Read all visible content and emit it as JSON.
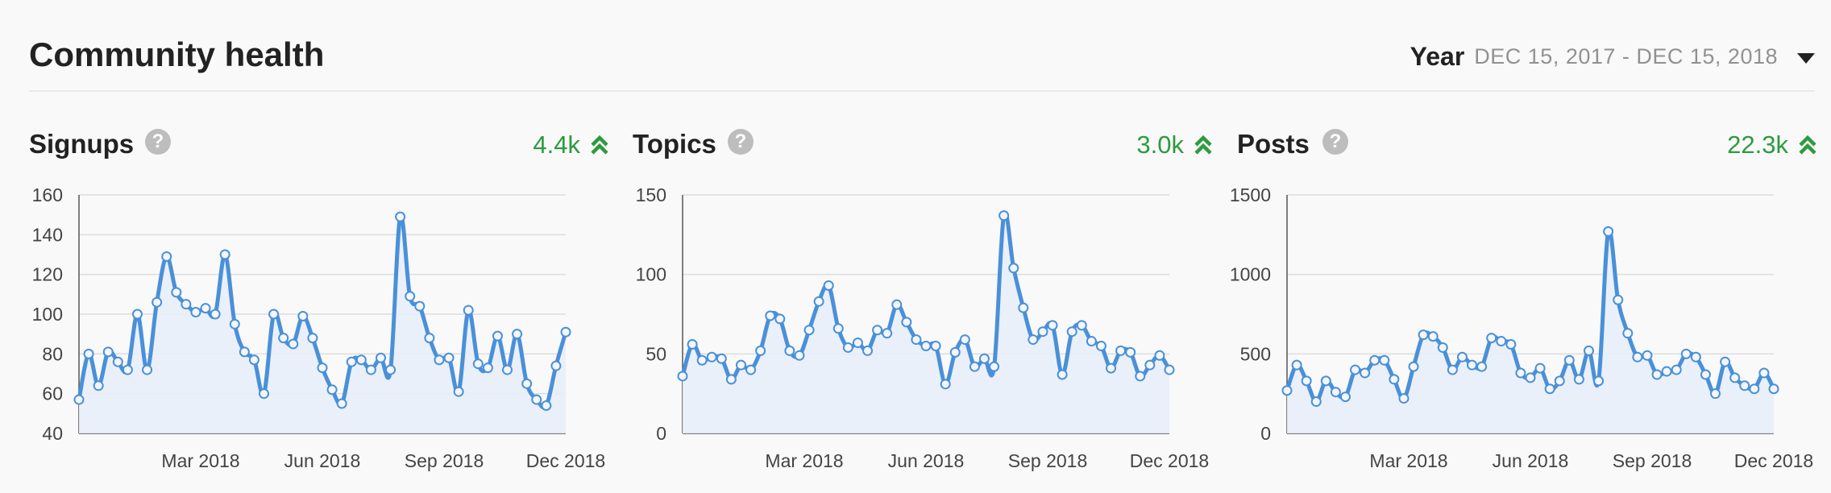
{
  "page": {
    "title": "Community health",
    "period_label": "Year",
    "period_range": "DEC 15, 2017 - DEC 15, 2018"
  },
  "colors": {
    "line": "#4a90d9",
    "area": "#e8eef8",
    "trend_up": "#2e9a3f",
    "grid": "#dddddd"
  },
  "panels": [
    {
      "title": "Signups",
      "help_icon": "question-icon",
      "trend_value": "4.4k",
      "trend_icon": "double-chevron-up-icon"
    },
    {
      "title": "Topics",
      "help_icon": "question-icon",
      "trend_value": "3.0k",
      "trend_icon": "double-chevron-up-icon"
    },
    {
      "title": "Posts",
      "help_icon": "question-icon",
      "trend_value": "22.3k",
      "trend_icon": "double-chevron-up-icon"
    }
  ],
  "chart_data": [
    {
      "type": "area",
      "ylim": [
        40,
        160
      ],
      "yticks": [
        40,
        60,
        80,
        100,
        120,
        140,
        160
      ],
      "xticks": [
        "Mar 2018",
        "Jun 2018",
        "Sep 2018",
        "Dec 2018"
      ],
      "grid": true,
      "series": [
        {
          "values": [
            57,
            80,
            64,
            81,
            76,
            72,
            100,
            72,
            106,
            129,
            111,
            105,
            101,
            103,
            100,
            130,
            95,
            81,
            77,
            60,
            100,
            88,
            85,
            99,
            88,
            73,
            62,
            55,
            76,
            77,
            72,
            78,
            72,
            149,
            109,
            104,
            88,
            77,
            78,
            61,
            102,
            75,
            73,
            89,
            72,
            90,
            65,
            57,
            54,
            74,
            91
          ]
        }
      ]
    },
    {
      "type": "area",
      "ylim": [
        0,
        150
      ],
      "yticks": [
        0,
        50,
        100,
        150
      ],
      "xticks": [
        "Mar 2018",
        "Jun 2018",
        "Sep 2018",
        "Dec 2018"
      ],
      "grid": true,
      "series": [
        {
          "values": [
            36,
            56,
            46,
            48,
            47,
            34,
            43,
            40,
            52,
            74,
            72,
            52,
            49,
            65,
            83,
            93,
            66,
            54,
            57,
            52,
            65,
            63,
            81,
            70,
            59,
            55,
            55,
            31,
            51,
            59,
            42,
            47,
            42,
            137,
            104,
            79,
            59,
            64,
            68,
            37,
            64,
            68,
            58,
            55,
            41,
            52,
            51,
            36,
            43,
            49,
            40
          ]
        }
      ]
    },
    {
      "type": "area",
      "ylim": [
        0,
        1500
      ],
      "yticks": [
        0,
        500,
        1000,
        1500
      ],
      "xticks": [
        "Mar 2018",
        "Jun 2018",
        "Sep 2018",
        "Dec 2018"
      ],
      "grid": true,
      "series": [
        {
          "values": [
            270,
            430,
            330,
            200,
            330,
            260,
            230,
            400,
            380,
            460,
            460,
            340,
            220,
            420,
            620,
            610,
            540,
            400,
            480,
            430,
            420,
            600,
            580,
            560,
            380,
            350,
            410,
            280,
            330,
            460,
            340,
            520,
            330,
            1270,
            840,
            630,
            480,
            490,
            370,
            390,
            400,
            500,
            480,
            370,
            250,
            450,
            350,
            300,
            280,
            380,
            280
          ]
        }
      ]
    }
  ]
}
